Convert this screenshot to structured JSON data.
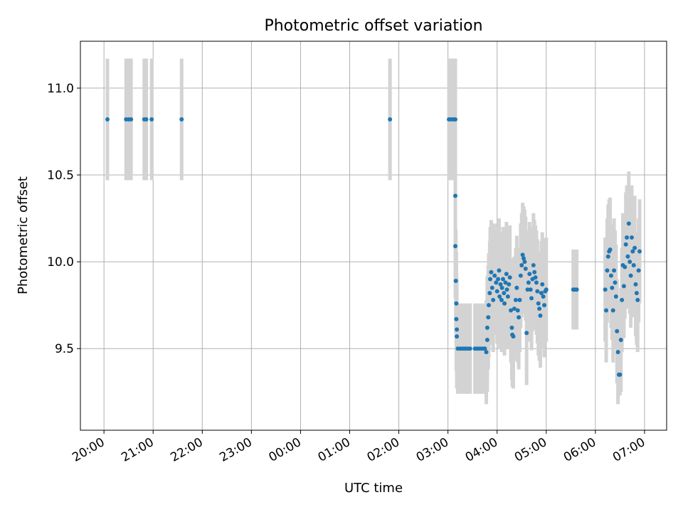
{
  "chart_data": {
    "type": "scatter",
    "title": "Photometric offset variation",
    "xlabel": "UTC time",
    "ylabel": "Photometric offset",
    "x_tick_labels": [
      "20:00",
      "21:00",
      "22:00",
      "23:00",
      "00:00",
      "01:00",
      "02:00",
      "03:00",
      "04:00",
      "05:00",
      "06:00",
      "07:00"
    ],
    "x_ticks_hours": [
      20,
      21,
      22,
      23,
      24,
      25,
      26,
      27,
      28,
      29,
      30,
      31
    ],
    "xlim_hours": [
      19.52,
      31.45
    ],
    "y_ticks": [
      9.5,
      10.0,
      10.5,
      11.0
    ],
    "y_tick_labels": [
      "9.5",
      "10.0",
      "10.5",
      "11.0"
    ],
    "ylim": [
      9.03,
      11.27
    ],
    "grid": true,
    "marker_color": "#1f77b4",
    "errorbar_color": "#d3d3d3",
    "series": [
      {
        "points": [
          {
            "t": 20.07,
            "y": 10.82,
            "e": 0.35
          },
          {
            "t": 20.45,
            "y": 10.82,
            "e": 0.35
          },
          {
            "t": 20.5,
            "y": 10.82,
            "e": 0.35
          },
          {
            "t": 20.55,
            "y": 10.82,
            "e": 0.35
          },
          {
            "t": 20.82,
            "y": 10.82,
            "e": 0.35
          },
          {
            "t": 20.86,
            "y": 10.82,
            "e": 0.35
          },
          {
            "t": 20.97,
            "y": 10.82,
            "e": 0.35
          },
          {
            "t": 21.58,
            "y": 10.82,
            "e": 0.35
          },
          {
            "t": 25.82,
            "y": 10.82,
            "e": 0.35
          },
          {
            "t": 27.02,
            "y": 10.82,
            "e": 0.35
          },
          {
            "t": 27.07,
            "y": 10.82,
            "e": 0.35
          },
          {
            "t": 27.12,
            "y": 10.82,
            "e": 0.35
          },
          {
            "t": 27.15,
            "y": 10.82,
            "e": 0.35
          },
          {
            "t": 27.15,
            "y": 10.38,
            "e": 0.3
          },
          {
            "t": 27.15,
            "y": 10.09,
            "e": 0.3
          },
          {
            "t": 27.16,
            "y": 9.89,
            "e": 0.3
          },
          {
            "t": 27.17,
            "y": 9.76,
            "e": 0.3
          },
          {
            "t": 27.17,
            "y": 9.67,
            "e": 0.3
          },
          {
            "t": 27.18,
            "y": 9.61,
            "e": 0.3
          },
          {
            "t": 27.18,
            "y": 9.57,
            "e": 0.3
          },
          {
            "t": 27.2,
            "y": 9.5,
            "e": 0.26
          },
          {
            "t": 27.25,
            "y": 9.5,
            "e": 0.26
          },
          {
            "t": 27.3,
            "y": 9.5,
            "e": 0.26
          },
          {
            "t": 27.35,
            "y": 9.5,
            "e": 0.26
          },
          {
            "t": 27.4,
            "y": 9.5,
            "e": 0.26
          },
          {
            "t": 27.45,
            "y": 9.5,
            "e": 0.26
          },
          {
            "t": 27.55,
            "y": 9.5,
            "e": 0.26
          },
          {
            "t": 27.6,
            "y": 9.5,
            "e": 0.26
          },
          {
            "t": 27.65,
            "y": 9.5,
            "e": 0.26
          },
          {
            "t": 27.7,
            "y": 9.5,
            "e": 0.26
          },
          {
            "t": 27.75,
            "y": 9.5,
            "e": 0.26
          },
          {
            "t": 27.78,
            "y": 9.48,
            "e": 0.3
          },
          {
            "t": 27.8,
            "y": 9.55,
            "e": 0.3
          },
          {
            "t": 27.8,
            "y": 9.62,
            "e": 0.3
          },
          {
            "t": 27.82,
            "y": 9.68,
            "e": 0.3
          },
          {
            "t": 27.83,
            "y": 9.75,
            "e": 0.3
          },
          {
            "t": 27.85,
            "y": 9.82,
            "e": 0.3
          },
          {
            "t": 27.86,
            "y": 9.9,
            "e": 0.3
          },
          {
            "t": 27.88,
            "y": 9.94,
            "e": 0.3
          },
          {
            "t": 27.9,
            "y": 9.85,
            "e": 0.3
          },
          {
            "t": 27.92,
            "y": 9.78,
            "e": 0.3
          },
          {
            "t": 27.95,
            "y": 9.92,
            "e": 0.3
          },
          {
            "t": 27.98,
            "y": 9.88,
            "e": 0.3
          },
          {
            "t": 28.0,
            "y": 9.83,
            "e": 0.3
          },
          {
            "t": 28.02,
            "y": 9.9,
            "e": 0.3
          },
          {
            "t": 28.04,
            "y": 9.95,
            "e": 0.3
          },
          {
            "t": 28.05,
            "y": 9.8,
            "e": 0.3
          },
          {
            "t": 28.07,
            "y": 9.87,
            "e": 0.3
          },
          {
            "t": 28.09,
            "y": 9.78,
            "e": 0.3
          },
          {
            "t": 28.1,
            "y": 9.85,
            "e": 0.3
          },
          {
            "t": 28.12,
            "y": 9.9,
            "e": 0.3
          },
          {
            "t": 28.14,
            "y": 9.82,
            "e": 0.3
          },
          {
            "t": 28.15,
            "y": 9.76,
            "e": 0.3
          },
          {
            "t": 28.17,
            "y": 9.88,
            "e": 0.3
          },
          {
            "t": 28.19,
            "y": 9.93,
            "e": 0.3
          },
          {
            "t": 28.2,
            "y": 9.84,
            "e": 0.3
          },
          {
            "t": 28.22,
            "y": 9.8,
            "e": 0.3
          },
          {
            "t": 28.24,
            "y": 9.87,
            "e": 0.3
          },
          {
            "t": 28.26,
            "y": 9.91,
            "e": 0.3
          },
          {
            "t": 28.28,
            "y": 9.72,
            "e": 0.3
          },
          {
            "t": 28.3,
            "y": 9.62,
            "e": 0.3
          },
          {
            "t": 28.31,
            "y": 9.58,
            "e": 0.3
          },
          {
            "t": 28.33,
            "y": 9.57,
            "e": 0.3
          },
          {
            "t": 28.35,
            "y": 9.73,
            "e": 0.3
          },
          {
            "t": 28.38,
            "y": 9.78,
            "e": 0.3
          },
          {
            "t": 28.4,
            "y": 9.85,
            "e": 0.3
          },
          {
            "t": 28.42,
            "y": 9.72,
            "e": 0.3
          },
          {
            "t": 28.44,
            "y": 9.68,
            "e": 0.3
          },
          {
            "t": 28.46,
            "y": 9.78,
            "e": 0.3
          },
          {
            "t": 28.48,
            "y": 9.92,
            "e": 0.3
          },
          {
            "t": 28.5,
            "y": 9.98,
            "e": 0.3
          },
          {
            "t": 28.52,
            "y": 10.04,
            "e": 0.3
          },
          {
            "t": 28.54,
            "y": 10.02,
            "e": 0.3
          },
          {
            "t": 28.56,
            "y": 10.0,
            "e": 0.3
          },
          {
            "t": 28.58,
            "y": 9.96,
            "e": 0.3
          },
          {
            "t": 28.6,
            "y": 9.59,
            "e": 0.3
          },
          {
            "t": 28.62,
            "y": 9.84,
            "e": 0.3
          },
          {
            "t": 28.64,
            "y": 9.88,
            "e": 0.3
          },
          {
            "t": 28.66,
            "y": 9.93,
            "e": 0.3
          },
          {
            "t": 28.68,
            "y": 9.84,
            "e": 0.3
          },
          {
            "t": 28.7,
            "y": 9.79,
            "e": 0.3
          },
          {
            "t": 28.72,
            "y": 9.9,
            "e": 0.3
          },
          {
            "t": 28.74,
            "y": 9.98,
            "e": 0.3
          },
          {
            "t": 28.76,
            "y": 9.94,
            "e": 0.3
          },
          {
            "t": 28.78,
            "y": 9.91,
            "e": 0.3
          },
          {
            "t": 28.8,
            "y": 9.88,
            "e": 0.3
          },
          {
            "t": 28.82,
            "y": 9.83,
            "e": 0.3
          },
          {
            "t": 28.84,
            "y": 9.76,
            "e": 0.3
          },
          {
            "t": 28.86,
            "y": 9.73,
            "e": 0.3
          },
          {
            "t": 28.88,
            "y": 9.69,
            "e": 0.3
          },
          {
            "t": 28.9,
            "y": 9.82,
            "e": 0.3
          },
          {
            "t": 28.92,
            "y": 9.87,
            "e": 0.3
          },
          {
            "t": 28.94,
            "y": 9.8,
            "e": 0.3
          },
          {
            "t": 28.96,
            "y": 9.75,
            "e": 0.3
          },
          {
            "t": 28.98,
            "y": 9.83,
            "e": 0.3
          },
          {
            "t": 29.0,
            "y": 9.84,
            "e": 0.3
          },
          {
            "t": 29.55,
            "y": 9.84,
            "e": 0.23
          },
          {
            "t": 29.58,
            "y": 9.84,
            "e": 0.23
          },
          {
            "t": 29.62,
            "y": 9.84,
            "e": 0.23
          },
          {
            "t": 30.2,
            "y": 9.84,
            "e": 0.3
          },
          {
            "t": 30.22,
            "y": 9.72,
            "e": 0.3
          },
          {
            "t": 30.24,
            "y": 9.95,
            "e": 0.3
          },
          {
            "t": 30.26,
            "y": 10.03,
            "e": 0.3
          },
          {
            "t": 30.28,
            "y": 10.06,
            "e": 0.3
          },
          {
            "t": 30.3,
            "y": 10.07,
            "e": 0.3
          },
          {
            "t": 30.32,
            "y": 9.92,
            "e": 0.3
          },
          {
            "t": 30.34,
            "y": 9.85,
            "e": 0.3
          },
          {
            "t": 30.36,
            "y": 9.72,
            "e": 0.3
          },
          {
            "t": 30.38,
            "y": 9.95,
            "e": 0.3
          },
          {
            "t": 30.4,
            "y": 9.88,
            "e": 0.3
          },
          {
            "t": 30.42,
            "y": 9.8,
            "e": 0.3
          },
          {
            "t": 30.44,
            "y": 9.6,
            "e": 0.3
          },
          {
            "t": 30.46,
            "y": 9.48,
            "e": 0.3
          },
          {
            "t": 30.48,
            "y": 9.35,
            "e": 0.12
          },
          {
            "t": 30.5,
            "y": 9.35,
            "e": 0.12
          },
          {
            "t": 30.52,
            "y": 9.55,
            "e": 0.3
          },
          {
            "t": 30.54,
            "y": 9.78,
            "e": 0.3
          },
          {
            "t": 30.56,
            "y": 9.98,
            "e": 0.3
          },
          {
            "t": 30.58,
            "y": 9.86,
            "e": 0.3
          },
          {
            "t": 30.6,
            "y": 9.97,
            "e": 0.3
          },
          {
            "t": 30.62,
            "y": 10.1,
            "e": 0.3
          },
          {
            "t": 30.64,
            "y": 10.14,
            "e": 0.3
          },
          {
            "t": 30.66,
            "y": 10.03,
            "e": 0.3
          },
          {
            "t": 30.68,
            "y": 10.22,
            "e": 0.3
          },
          {
            "t": 30.7,
            "y": 10.0,
            "e": 0.3
          },
          {
            "t": 30.72,
            "y": 9.92,
            "e": 0.3
          },
          {
            "t": 30.74,
            "y": 10.14,
            "e": 0.3
          },
          {
            "t": 30.76,
            "y": 10.06,
            "e": 0.3
          },
          {
            "t": 30.78,
            "y": 9.98,
            "e": 0.3
          },
          {
            "t": 30.8,
            "y": 10.08,
            "e": 0.3
          },
          {
            "t": 30.82,
            "y": 9.87,
            "e": 0.3
          },
          {
            "t": 30.84,
            "y": 9.82,
            "e": 0.3
          },
          {
            "t": 30.86,
            "y": 9.78,
            "e": 0.3
          },
          {
            "t": 30.88,
            "y": 9.95,
            "e": 0.3
          },
          {
            "t": 30.9,
            "y": 10.06,
            "e": 0.3
          }
        ]
      }
    ]
  }
}
